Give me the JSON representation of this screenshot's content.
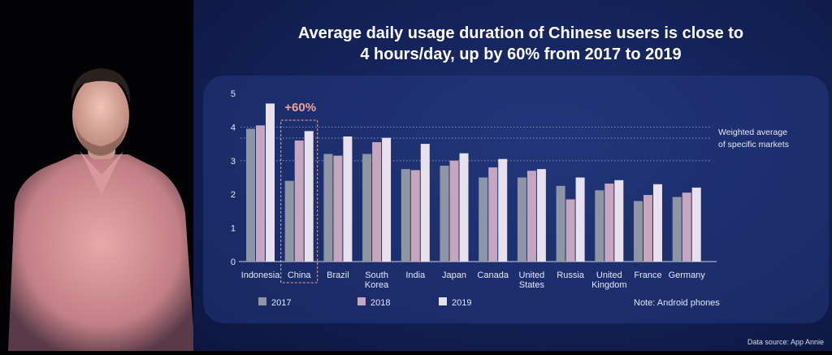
{
  "slide": {
    "title_line1": "Average daily usage duration of Chinese users is close to",
    "title_line2": "4 hours/day, up by 60% from 2017 to 2019",
    "source": "Data source: App Annie"
  },
  "colors": {
    "2017": "#8f96a3",
    "2018": "#c6a5bf",
    "2019": "#e8e0ec",
    "highlight": "#e8a49a"
  },
  "chart_data": {
    "type": "bar",
    "categories": [
      "Indonesia",
      "China",
      "Brazil",
      "South Korea",
      "India",
      "Japan",
      "Canada",
      "United States",
      "Russia",
      "United Kingdom",
      "France",
      "Germany"
    ],
    "category_lines": [
      [
        "Indonesia"
      ],
      [
        "China"
      ],
      [
        "Brazil"
      ],
      [
        "South",
        "Korea"
      ],
      [
        "India"
      ],
      [
        "Japan"
      ],
      [
        "Canada"
      ],
      [
        "United",
        "States"
      ],
      [
        "Russia"
      ],
      [
        "United",
        "Kingdom"
      ],
      [
        "France"
      ],
      [
        "Germany"
      ]
    ],
    "series": [
      {
        "name": "2017",
        "values": [
          3.95,
          2.4,
          3.2,
          3.2,
          2.75,
          2.85,
          2.5,
          2.5,
          2.25,
          2.12,
          1.8,
          1.92
        ]
      },
      {
        "name": "2018",
        "values": [
          4.05,
          3.6,
          3.15,
          3.55,
          2.72,
          3.0,
          2.8,
          2.7,
          1.85,
          2.32,
          1.98,
          2.05
        ]
      },
      {
        "name": "2019",
        "values": [
          4.7,
          3.88,
          3.72,
          3.68,
          3.5,
          3.22,
          3.05,
          2.75,
          2.5,
          2.42,
          2.3,
          2.2
        ]
      }
    ],
    "ylim": [
      0,
      5
    ],
    "yticks": [
      0,
      1,
      2,
      3,
      4,
      5
    ],
    "reference_lines": [
      4.0,
      3.67,
      3.0
    ],
    "reference_label": [
      "Weighted average",
      "of specific markets"
    ],
    "annotation": {
      "text": "+60%",
      "category": "China"
    },
    "note": "Note: Android phones",
    "legend_placement": "bottom"
  }
}
